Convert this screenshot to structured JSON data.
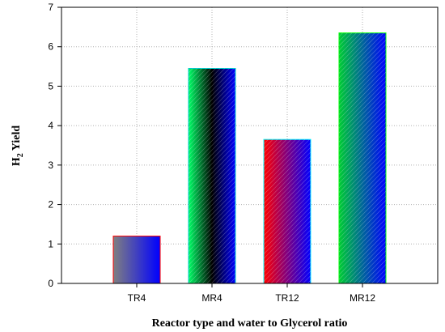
{
  "chart_data": {
    "type": "bar",
    "title": "",
    "xlabel": "Reactor type and water to Glycerol ratio",
    "ylabel": {
      "main": "H",
      "sub": "2",
      "rest": "Yield"
    },
    "categories": [
      "TR4",
      "MR4",
      "TR12",
      "MR12"
    ],
    "values": [
      1.2,
      5.45,
      3.65,
      6.35
    ],
    "ylim": [
      0,
      7
    ],
    "yticks": [
      "0",
      "1",
      "2",
      "3",
      "4",
      "5",
      "6",
      "7"
    ],
    "grid": true,
    "bar_gradients": [
      [
        "#808080",
        "#0000ff"
      ],
      [
        "#00ff66",
        "#000000",
        "#0000ff"
      ],
      [
        "#ff0000",
        "#0000ff"
      ],
      [
        "#00cc33",
        "#0000ff"
      ]
    ],
    "bar_borders": [
      "#ff0000",
      "#00cccc",
      "#00ffff",
      "#00ff00"
    ]
  }
}
